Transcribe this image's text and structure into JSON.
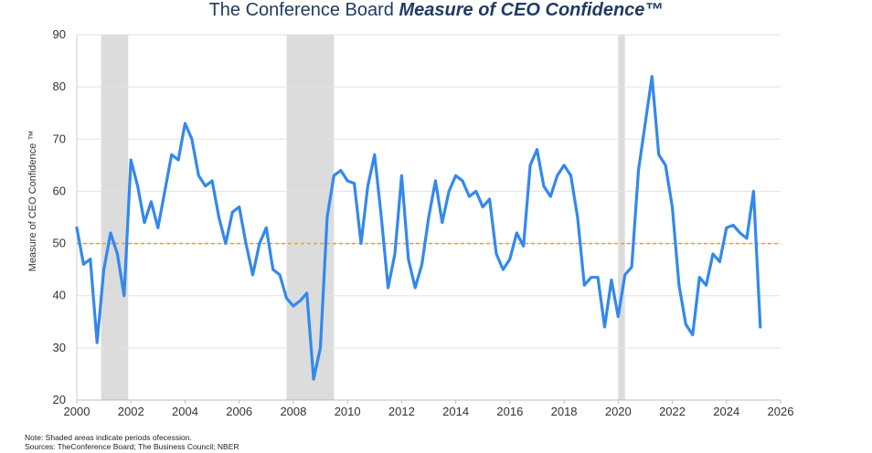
{
  "chart_data": {
    "type": "line",
    "title_plain": "The Conference Board ",
    "title_emphasis": "Measure of CEO Confidence™",
    "ylabel": "Measure of CEO Confidence ™",
    "ylim": [
      20,
      90
    ],
    "yticks": [
      20,
      30,
      40,
      50,
      60,
      70,
      80,
      90
    ],
    "xlim": [
      2000,
      2026
    ],
    "xticks": [
      2000,
      2002,
      2004,
      2006,
      2008,
      2010,
      2012,
      2014,
      2016,
      2018,
      2020,
      2022,
      2024,
      2026
    ],
    "grid": "horizontal",
    "reference_line": 50,
    "recessions": [
      [
        2000.9,
        2001.9
      ],
      [
        2007.75,
        2009.5
      ],
      [
        2020.0,
        2020.25
      ]
    ],
    "series": [
      {
        "color": "#3388ee",
        "x": [
          2000.0,
          2000.25,
          2000.5,
          2000.75,
          2001.0,
          2001.25,
          2001.5,
          2001.75,
          2002.0,
          2002.25,
          2002.5,
          2002.75,
          2003.0,
          2003.25,
          2003.5,
          2003.75,
          2004.0,
          2004.25,
          2004.5,
          2004.75,
          2005.0,
          2005.25,
          2005.5,
          2005.75,
          2006.0,
          2006.25,
          2006.5,
          2006.75,
          2007.0,
          2007.25,
          2007.5,
          2007.75,
          2008.0,
          2008.25,
          2008.5,
          2008.75,
          2009.0,
          2009.25,
          2009.5,
          2009.75,
          2010.0,
          2010.25,
          2010.5,
          2010.75,
          2011.0,
          2011.25,
          2011.5,
          2011.75,
          2012.0,
          2012.25,
          2012.5,
          2012.75,
          2013.0,
          2013.25,
          2013.5,
          2013.75,
          2014.0,
          2014.25,
          2014.5,
          2014.75,
          2015.0,
          2015.25,
          2015.5,
          2015.75,
          2016.0,
          2016.25,
          2016.5,
          2016.75,
          2017.0,
          2017.25,
          2017.5,
          2017.75,
          2018.0,
          2018.25,
          2018.5,
          2018.75,
          2019.0,
          2019.25,
          2019.5,
          2019.75,
          2020.0,
          2020.25,
          2020.5,
          2020.75,
          2021.0,
          2021.25,
          2021.5,
          2021.75,
          2022.0,
          2022.25,
          2022.5,
          2022.75,
          2023.0,
          2023.25,
          2023.5,
          2023.75,
          2024.0,
          2024.25,
          2024.5,
          2024.75,
          2025.0,
          2025.25
        ],
        "values": [
          53,
          46,
          47,
          31,
          45,
          52,
          48,
          40,
          66,
          61,
          54,
          58,
          53,
          60,
          67,
          66,
          73,
          70,
          63,
          61,
          62,
          55,
          50,
          56,
          57,
          50,
          44,
          50,
          53,
          45,
          44,
          39.5,
          38,
          39,
          40.5,
          24,
          30,
          55,
          63,
          64,
          62,
          61.5,
          50,
          61,
          67,
          55,
          41.5,
          48,
          63,
          47,
          41.5,
          46,
          55,
          62,
          54,
          60,
          63,
          62,
          59,
          60,
          57,
          58.5,
          48,
          45,
          47,
          52,
          49.5,
          65,
          68,
          61,
          59,
          63,
          65,
          63,
          55,
          42,
          43.5,
          43.5,
          34,
          43,
          36,
          44,
          45.5,
          64,
          73,
          82,
          67,
          65,
          57,
          42,
          34.5,
          32.5,
          43.5,
          42,
          48,
          46.5,
          53,
          53.5,
          52,
          51,
          60,
          34
        ]
      }
    ]
  },
  "notes": {
    "line1": "Note: Shaded areas indicate periods ofecession.",
    "line2": "Sources: TheConference Board; The Business Council; NBER"
  }
}
